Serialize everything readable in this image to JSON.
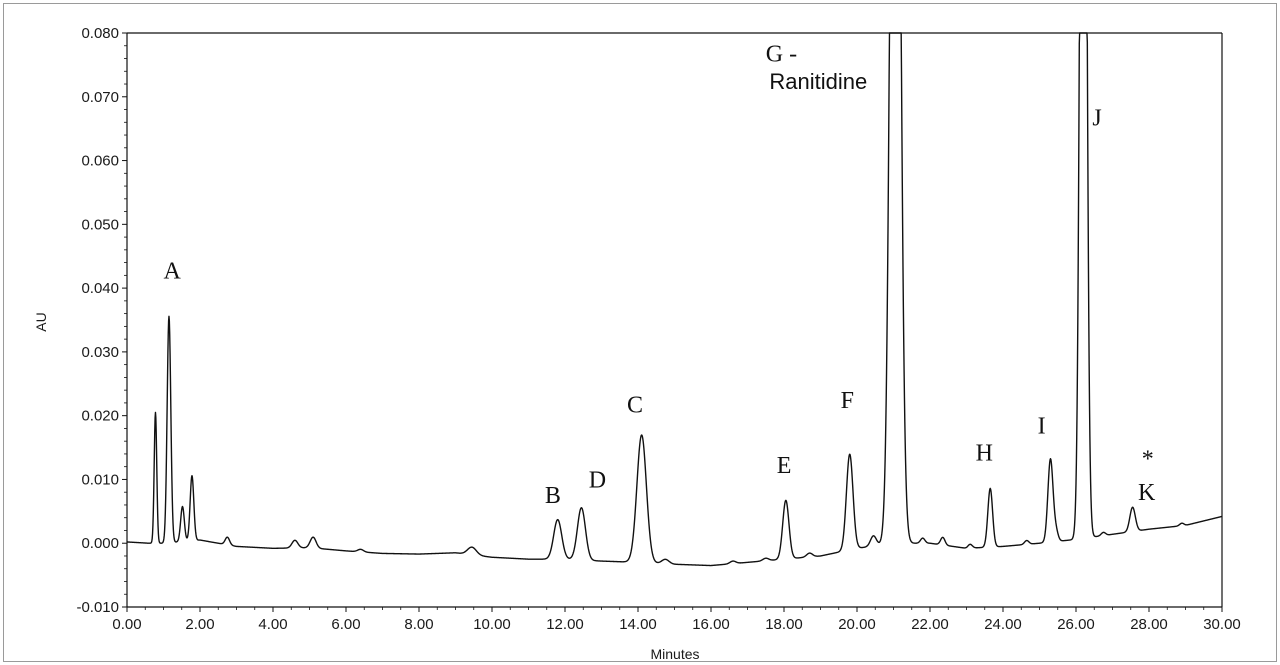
{
  "chart_data": {
    "type": "line",
    "xlabel": "Minutes",
    "ylabel": "AU",
    "xlim": [
      0,
      30
    ],
    "ylim": [
      -0.01,
      0.08
    ],
    "grid": false,
    "x_ticks": [
      "0.00",
      "2.00",
      "4.00",
      "6.00",
      "8.00",
      "10.00",
      "12.00",
      "14.00",
      "16.00",
      "18.00",
      "20.00",
      "22.00",
      "24.00",
      "26.00",
      "28.00",
      "30.00"
    ],
    "y_ticks": [
      "0.080",
      "0.070",
      "0.060",
      "0.050",
      "0.040",
      "0.030",
      "0.020",
      "0.010",
      "0.000",
      "-0.010"
    ],
    "line_color": "#111111",
    "label_colors": {
      "normal": "#111111",
      "highlight": "#d0222a"
    },
    "baseline": [
      [
        0,
        0.0002
      ],
      [
        0.6,
        0.0
      ],
      [
        1.0,
        0.0
      ],
      [
        2.0,
        0.0005
      ],
      [
        3.0,
        -0.0005
      ],
      [
        4.0,
        -0.0008
      ],
      [
        5.0,
        -0.0007
      ],
      [
        6.0,
        -0.0012
      ],
      [
        7.0,
        -0.0016
      ],
      [
        8.0,
        -0.0017
      ],
      [
        9.0,
        -0.0015
      ],
      [
        10.0,
        -0.0022
      ],
      [
        11.0,
        -0.0025
      ],
      [
        12.0,
        -0.0025
      ],
      [
        13.0,
        -0.0028
      ],
      [
        14.0,
        -0.003
      ],
      [
        15.0,
        -0.0033
      ],
      [
        16.0,
        -0.0035
      ],
      [
        17.0,
        -0.003
      ],
      [
        18.0,
        -0.0025
      ],
      [
        19.0,
        -0.002
      ],
      [
        20.0,
        -0.0008
      ],
      [
        21.0,
        0.0
      ],
      [
        22.0,
        0.0
      ],
      [
        23.0,
        -0.0008
      ],
      [
        24.0,
        -0.0005
      ],
      [
        25.0,
        0.0
      ],
      [
        26.0,
        0.0006
      ],
      [
        27.0,
        0.0014
      ],
      [
        28.0,
        0.0022
      ],
      [
        29.0,
        0.0028
      ],
      [
        30.0,
        0.0042
      ]
    ],
    "peaks": [
      {
        "rt": 0.78,
        "height": 0.0205,
        "width": 0.035
      },
      {
        "rt": 1.15,
        "height": 0.0355,
        "width": 0.05
      },
      {
        "rt": 1.52,
        "height": 0.0055,
        "width": 0.05
      },
      {
        "rt": 1.78,
        "height": 0.0102,
        "width": 0.05
      },
      {
        "rt": 2.75,
        "height": 0.0012,
        "width": 0.06
      },
      {
        "rt": 4.6,
        "height": 0.0012,
        "width": 0.08
      },
      {
        "rt": 5.1,
        "height": 0.0017,
        "width": 0.08
      },
      {
        "rt": 6.4,
        "height": 0.0004,
        "width": 0.08
      },
      {
        "rt": 9.45,
        "height": 0.0012,
        "width": 0.12
      },
      {
        "rt": 11.8,
        "height": 0.0062,
        "width": 0.11
      },
      {
        "rt": 12.45,
        "height": 0.0082,
        "width": 0.11
      },
      {
        "rt": 14.1,
        "height": 0.02,
        "width": 0.13
      },
      {
        "rt": 14.75,
        "height": 0.0007,
        "width": 0.1
      },
      {
        "rt": 16.6,
        "height": 0.0004,
        "width": 0.08
      },
      {
        "rt": 17.5,
        "height": 0.0004,
        "width": 0.08
      },
      {
        "rt": 18.05,
        "height": 0.0092,
        "width": 0.085
      },
      {
        "rt": 18.7,
        "height": 0.0006,
        "width": 0.08
      },
      {
        "rt": 19.8,
        "height": 0.015,
        "width": 0.09
      },
      {
        "rt": 20.45,
        "height": 0.0016,
        "width": 0.08
      },
      {
        "rt": 21.05,
        "height": 0.2,
        "width": 0.12
      },
      {
        "rt": 21.8,
        "height": 0.0008,
        "width": 0.06
      },
      {
        "rt": 22.35,
        "height": 0.0012,
        "width": 0.06
      },
      {
        "rt": 23.1,
        "height": 0.0006,
        "width": 0.06
      },
      {
        "rt": 23.65,
        "height": 0.0092,
        "width": 0.065
      },
      {
        "rt": 24.65,
        "height": 0.0006,
        "width": 0.06
      },
      {
        "rt": 25.3,
        "height": 0.013,
        "width": 0.07
      },
      {
        "rt": 25.45,
        "height": 0.0016,
        "width": 0.06
      },
      {
        "rt": 26.2,
        "height": 0.2,
        "width": 0.08
      },
      {
        "rt": 26.75,
        "height": 0.0005,
        "width": 0.06
      },
      {
        "rt": 27.55,
        "height": 0.0038,
        "width": 0.075
      },
      {
        "rt": 28.9,
        "height": 0.0004,
        "width": 0.06
      }
    ],
    "annotations": [
      {
        "id": "A",
        "text": "A",
        "x": 1.0,
        "y": 0.0415,
        "color": "normal",
        "font": "serif"
      },
      {
        "id": "B",
        "text": "B",
        "x": 11.45,
        "y": 0.0063,
        "color": "highlight",
        "font": "serif"
      },
      {
        "id": "D",
        "text": "D",
        "x": 12.65,
        "y": 0.0087,
        "color": "normal",
        "font": "serif"
      },
      {
        "id": "C",
        "text": "C",
        "x": 13.7,
        "y": 0.0205,
        "color": "normal",
        "font": "serif"
      },
      {
        "id": "E",
        "text": "E",
        "x": 17.8,
        "y": 0.011,
        "color": "normal",
        "font": "serif"
      },
      {
        "id": "F",
        "text": "F",
        "x": 19.55,
        "y": 0.0212,
        "color": "normal",
        "font": "serif"
      },
      {
        "id": "G1",
        "text": "G -",
        "x": 17.5,
        "y": 0.0755,
        "color": "normal",
        "font": "serif"
      },
      {
        "id": "G2",
        "text": "Ranitidine",
        "x": 17.6,
        "y": 0.0712,
        "color": "normal",
        "font": "sans"
      },
      {
        "id": "H",
        "text": "H",
        "x": 23.25,
        "y": 0.013,
        "color": "highlight",
        "font": "serif"
      },
      {
        "id": "I",
        "text": "I",
        "x": 24.95,
        "y": 0.0172,
        "color": "highlight",
        "font": "serif"
      },
      {
        "id": "J",
        "text": "J",
        "x": 26.45,
        "y": 0.0655,
        "color": "normal",
        "font": "serif"
      },
      {
        "id": "star",
        "text": "*",
        "x": 27.8,
        "y": 0.012,
        "color": "normal",
        "font": "serif"
      },
      {
        "id": "K",
        "text": "K",
        "x": 27.7,
        "y": 0.0068,
        "color": "normal",
        "font": "serif"
      }
    ]
  }
}
